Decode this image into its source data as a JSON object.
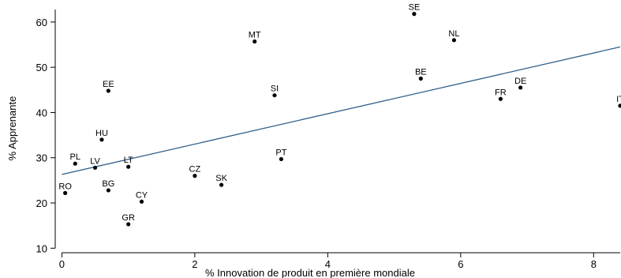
{
  "chart_data": {
    "type": "scatter",
    "xlabel": "% Innovation de produit en première mondiale",
    "ylabel": "% Apprenante",
    "xlim": [
      -0.1,
      8.4
    ],
    "ylim": [
      9,
      64
    ],
    "x_ticks": [
      0,
      2,
      4,
      6,
      8
    ],
    "y_ticks": [
      10,
      20,
      30,
      40,
      50,
      60
    ],
    "grid": false,
    "points": [
      {
        "label": "SE",
        "x": 5.3,
        "y": 61.8
      },
      {
        "label": "NL",
        "x": 5.9,
        "y": 56.0
      },
      {
        "label": "MT",
        "x": 2.9,
        "y": 55.7
      },
      {
        "label": "BE",
        "x": 5.4,
        "y": 47.5
      },
      {
        "label": "DE",
        "x": 6.9,
        "y": 45.5
      },
      {
        "label": "EE",
        "x": 0.7,
        "y": 44.8
      },
      {
        "label": "SI",
        "x": 3.2,
        "y": 43.8
      },
      {
        "label": "FR",
        "x": 6.6,
        "y": 43.0
      },
      {
        "label": "IT",
        "x": 8.4,
        "y": 41.5
      },
      {
        "label": "HU",
        "x": 0.6,
        "y": 34.0
      },
      {
        "label": "PT",
        "x": 3.3,
        "y": 29.7
      },
      {
        "label": "PL",
        "x": 0.2,
        "y": 28.7
      },
      {
        "label": "LT",
        "x": 1.0,
        "y": 28.0
      },
      {
        "label": "LV",
        "x": 0.5,
        "y": 27.8
      },
      {
        "label": "CZ",
        "x": 2.0,
        "y": 26.0
      },
      {
        "label": "SK",
        "x": 2.4,
        "y": 24.0
      },
      {
        "label": "BG",
        "x": 0.7,
        "y": 22.8
      },
      {
        "label": "RO",
        "x": 0.05,
        "y": 22.2
      },
      {
        "label": "CY",
        "x": 1.2,
        "y": 20.3
      },
      {
        "label": "GR",
        "x": 1.0,
        "y": 15.3
      }
    ],
    "fit_line": {
      "x": [
        0,
        8.4
      ],
      "y": [
        26.3,
        54.5
      ]
    }
  }
}
